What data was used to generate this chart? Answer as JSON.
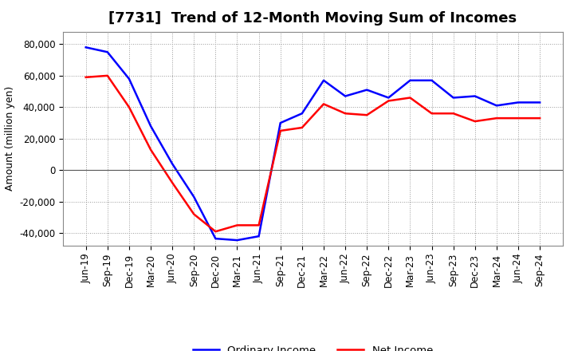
{
  "title": "[7731]  Trend of 12-Month Moving Sum of Incomes",
  "ylabel": "Amount (million yen)",
  "x_labels": [
    "Jun-19",
    "Sep-19",
    "Dec-19",
    "Mar-20",
    "Jun-20",
    "Sep-20",
    "Dec-20",
    "Mar-21",
    "Jun-21",
    "Sep-21",
    "Dec-21",
    "Mar-22",
    "Jun-22",
    "Sep-22",
    "Dec-22",
    "Mar-23",
    "Jun-23",
    "Sep-23",
    "Dec-23",
    "Mar-24",
    "Jun-24",
    "Sep-24"
  ],
  "ordinary_income": [
    78000,
    75000,
    58000,
    28000,
    4000,
    -17000,
    -43500,
    -44500,
    -42000,
    30000,
    36000,
    57000,
    47000,
    51000,
    46000,
    57000,
    57000,
    46000,
    47000,
    41000,
    43000,
    43000
  ],
  "net_income": [
    59000,
    60000,
    40000,
    13000,
    -8000,
    -28000,
    -39000,
    -35000,
    -35000,
    25000,
    27000,
    42000,
    36000,
    35000,
    44000,
    46000,
    36000,
    36000,
    31000,
    33000,
    33000,
    33000
  ],
  "ordinary_income_color": "#0000ff",
  "net_income_color": "#ff0000",
  "line_width": 1.8,
  "ylim": [
    -48000,
    88000
  ],
  "yticks": [
    -40000,
    -20000,
    0,
    20000,
    40000,
    60000,
    80000
  ],
  "background_color": "#ffffff",
  "grid_color": "#999999",
  "legend_ordinary": "Ordinary Income",
  "legend_net": "Net Income",
  "title_fontsize": 13,
  "axis_fontsize": 9,
  "tick_fontsize": 8.5
}
